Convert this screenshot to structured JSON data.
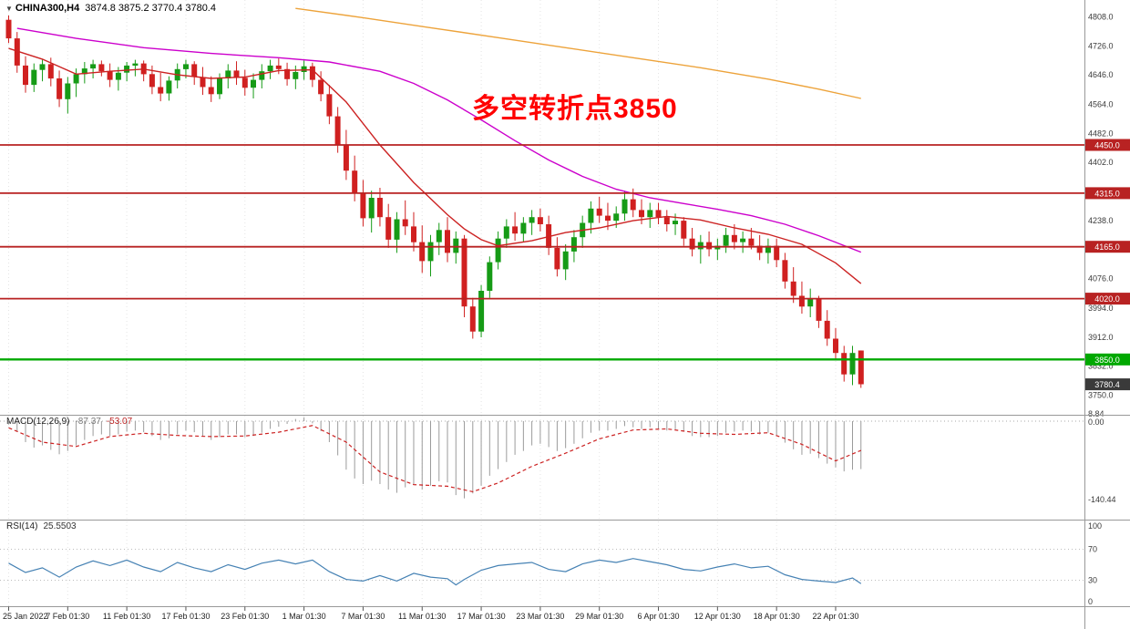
{
  "header": {
    "collapse_icon": "▼",
    "symbol": "CHINA300,H4",
    "ohlc": "3874.8 3875.2 3770.4 3780.4"
  },
  "annotation": {
    "text": "多空转折点3850",
    "color": "#ff0000"
  },
  "chart_data": {
    "type": "candlestick",
    "symbol": "CHINA300",
    "timeframe": "H4",
    "last_ohlc": {
      "open": 3874.8,
      "high": 3875.2,
      "low": 3770.4,
      "close": 3780.4
    },
    "up_color": "#169b16",
    "down_color": "#d02020",
    "x_tick_labels": [
      "25 Jan 2022",
      "7 Feb 01:30",
      "11 Feb 01:30",
      "17 Feb 01:30",
      "23 Feb 01:30",
      "1 Mar 01:30",
      "7 Mar 01:30",
      "11 Mar 01:30",
      "17 Mar 01:30",
      "23 Mar 01:30",
      "29 Mar 01:30",
      "6 Apr 01:30",
      "12 Apr 01:30",
      "18 Apr 01:30",
      "22 Apr 01:30"
    ],
    "bars_per_tick": 7,
    "y_axis_labels": [
      "4808.0",
      "4726.0",
      "4646.0",
      "4564.0",
      "4482.0",
      "4402.0",
      "4320.0",
      "4238.0",
      "4158.0",
      "4076.0",
      "3994.0",
      "3912.0",
      "3832.0",
      "3750.0"
    ],
    "candles": [
      [
        4800,
        4812,
        4735,
        4748
      ],
      [
        4748,
        4766,
        4652,
        4672
      ],
      [
        4672,
        4698,
        4596,
        4618
      ],
      [
        4618,
        4678,
        4598,
        4660
      ],
      [
        4660,
        4688,
        4628,
        4676
      ],
      [
        4676,
        4694,
        4614,
        4636
      ],
      [
        4636,
        4658,
        4556,
        4578
      ],
      [
        4578,
        4640,
        4538,
        4622
      ],
      [
        4622,
        4664,
        4584,
        4648
      ],
      [
        4648,
        4682,
        4622,
        4664
      ],
      [
        4664,
        4688,
        4636,
        4676
      ],
      [
        4676,
        4686,
        4642,
        4656
      ],
      [
        4656,
        4678,
        4612,
        4632
      ],
      [
        4632,
        4668,
        4602,
        4652
      ],
      [
        4652,
        4682,
        4628,
        4672
      ],
      [
        4672,
        4688,
        4642,
        4678
      ],
      [
        4678,
        4686,
        4628,
        4648
      ],
      [
        4648,
        4672,
        4592,
        4612
      ],
      [
        4612,
        4652,
        4572,
        4594
      ],
      [
        4594,
        4642,
        4574,
        4630
      ],
      [
        4630,
        4678,
        4608,
        4662
      ],
      [
        4662,
        4688,
        4636,
        4676
      ],
      [
        4676,
        4684,
        4618,
        4640
      ],
      [
        4640,
        4668,
        4590,
        4612
      ],
      [
        4612,
        4642,
        4570,
        4592
      ],
      [
        4592,
        4650,
        4578,
        4636
      ],
      [
        4636,
        4676,
        4608,
        4658
      ],
      [
        4658,
        4684,
        4618,
        4638
      ],
      [
        4638,
        4660,
        4588,
        4610
      ],
      [
        4610,
        4650,
        4580,
        4632
      ],
      [
        4632,
        4676,
        4608,
        4656
      ],
      [
        4656,
        4688,
        4634,
        4672
      ],
      [
        4672,
        4692,
        4648,
        4662
      ],
      [
        4662,
        4680,
        4616,
        4634
      ],
      [
        4634,
        4672,
        4606,
        4654
      ],
      [
        4654,
        4686,
        4632,
        4670
      ],
      [
        4670,
        4680,
        4612,
        4632
      ],
      [
        4632,
        4656,
        4572,
        4592
      ],
      [
        4592,
        4618,
        4508,
        4530
      ],
      [
        4530,
        4556,
        4428,
        4450
      ],
      [
        4450,
        4492,
        4352,
        4378
      ],
      [
        4378,
        4420,
        4292,
        4315
      ],
      [
        4315,
        4352,
        4222,
        4245
      ],
      [
        4245,
        4322,
        4205,
        4302
      ],
      [
        4302,
        4330,
        4222,
        4248
      ],
      [
        4248,
        4285,
        4162,
        4185
      ],
      [
        4185,
        4262,
        4148,
        4242
      ],
      [
        4242,
        4295,
        4198,
        4222
      ],
      [
        4222,
        4262,
        4152,
        4178
      ],
      [
        4178,
        4225,
        4092,
        4125
      ],
      [
        4125,
        4198,
        4082,
        4178
      ],
      [
        4178,
        4232,
        4142,
        4212
      ],
      [
        4212,
        4248,
        4122,
        4148
      ],
      [
        4148,
        4208,
        4118,
        4188
      ],
      [
        4188,
        4198,
        3968,
        3998
      ],
      [
        3998,
        4022,
        3908,
        3928
      ],
      [
        3928,
        4058,
        3912,
        4042
      ],
      [
        4042,
        4138,
        4022,
        4122
      ],
      [
        4122,
        4208,
        4102,
        4188
      ],
      [
        4188,
        4242,
        4162,
        4222
      ],
      [
        4222,
        4262,
        4182,
        4202
      ],
      [
        4202,
        4248,
        4178,
        4232
      ],
      [
        4232,
        4268,
        4198,
        4248
      ],
      [
        4248,
        4272,
        4208,
        4228
      ],
      [
        4228,
        4252,
        4142,
        4162
      ],
      [
        4162,
        4192,
        4082,
        4102
      ],
      [
        4102,
        4172,
        4072,
        4152
      ],
      [
        4152,
        4212,
        4122,
        4192
      ],
      [
        4192,
        4252,
        4162,
        4232
      ],
      [
        4232,
        4292,
        4202,
        4272
      ],
      [
        4272,
        4305,
        4232,
        4252
      ],
      [
        4252,
        4288,
        4212,
        4238
      ],
      [
        4238,
        4278,
        4218,
        4258
      ],
      [
        4258,
        4322,
        4238,
        4298
      ],
      [
        4298,
        4328,
        4248,
        4268
      ],
      [
        4268,
        4298,
        4228,
        4248
      ],
      [
        4248,
        4288,
        4218,
        4268
      ],
      [
        4268,
        4288,
        4228,
        4248
      ],
      [
        4248,
        4268,
        4208,
        4228
      ],
      [
        4228,
        4258,
        4198,
        4238
      ],
      [
        4238,
        4248,
        4168,
        4188
      ],
      [
        4188,
        4218,
        4138,
        4158
      ],
      [
        4158,
        4198,
        4118,
        4178
      ],
      [
        4178,
        4208,
        4138,
        4158
      ],
      [
        4158,
        4188,
        4128,
        4168
      ],
      [
        4168,
        4218,
        4148,
        4198
      ],
      [
        4198,
        4228,
        4158,
        4178
      ],
      [
        4178,
        4208,
        4148,
        4188
      ],
      [
        4188,
        4218,
        4158,
        4168
      ],
      [
        4168,
        4198,
        4128,
        4148
      ],
      [
        4148,
        4188,
        4118,
        4168
      ],
      [
        4168,
        4188,
        4108,
        4128
      ],
      [
        4128,
        4148,
        4048,
        4068
      ],
      [
        4068,
        4108,
        4008,
        4028
      ],
      [
        4028,
        4068,
        3978,
        3998
      ],
      [
        3998,
        4048,
        3968,
        4018
      ],
      [
        4018,
        4028,
        3938,
        3958
      ],
      [
        3958,
        3988,
        3888,
        3908
      ],
      [
        3908,
        3938,
        3848,
        3868
      ],
      [
        3868,
        3888,
        3788,
        3808
      ],
      [
        3808,
        3888,
        3778,
        3868
      ],
      [
        3874.8,
        3875.2,
        3770.4,
        3780.4
      ]
    ],
    "moving_averages": [
      {
        "name": "ma-slow-line",
        "color": "#eda33b",
        "points": [
          [
            34,
            4832
          ],
          [
            42,
            4806
          ],
          [
            50,
            4778
          ],
          [
            58,
            4750
          ],
          [
            66,
            4722
          ],
          [
            74,
            4694
          ],
          [
            82,
            4666
          ],
          [
            90,
            4634
          ],
          [
            96,
            4606
          ],
          [
            101,
            4580
          ]
        ]
      },
      {
        "name": "ma-mid-line",
        "color": "#cc00cc",
        "points": [
          [
            1,
            4776
          ],
          [
            8,
            4748
          ],
          [
            16,
            4722
          ],
          [
            24,
            4706
          ],
          [
            32,
            4694
          ],
          [
            38,
            4682
          ],
          [
            44,
            4656
          ],
          [
            48,
            4622
          ],
          [
            52,
            4576
          ],
          [
            56,
            4520
          ],
          [
            60,
            4462
          ],
          [
            64,
            4408
          ],
          [
            68,
            4362
          ],
          [
            72,
            4326
          ],
          [
            76,
            4302
          ],
          [
            80,
            4286
          ],
          [
            84,
            4270
          ],
          [
            88,
            4252
          ],
          [
            92,
            4228
          ],
          [
            96,
            4196
          ],
          [
            101,
            4150
          ]
        ]
      },
      {
        "name": "ma-fast-line",
        "color": "#cc2222",
        "points": [
          [
            0,
            4720
          ],
          [
            4,
            4690
          ],
          [
            8,
            4648
          ],
          [
            12,
            4656
          ],
          [
            16,
            4662
          ],
          [
            20,
            4646
          ],
          [
            24,
            4636
          ],
          [
            28,
            4640
          ],
          [
            32,
            4658
          ],
          [
            36,
            4660
          ],
          [
            40,
            4570
          ],
          [
            44,
            4450
          ],
          [
            48,
            4345
          ],
          [
            52,
            4255
          ],
          [
            54,
            4215
          ],
          [
            56,
            4185
          ],
          [
            58,
            4168
          ],
          [
            62,
            4182
          ],
          [
            66,
            4205
          ],
          [
            70,
            4218
          ],
          [
            74,
            4238
          ],
          [
            78,
            4250
          ],
          [
            82,
            4240
          ],
          [
            86,
            4218
          ],
          [
            90,
            4200
          ],
          [
            94,
            4172
          ],
          [
            98,
            4120
          ],
          [
            101,
            4062
          ]
        ]
      }
    ],
    "h_lines": [
      {
        "label": "4450.0",
        "price": 4450.0,
        "color": "#b82222"
      },
      {
        "label": "4315.0",
        "price": 4315.0,
        "color": "#b82222"
      },
      {
        "label": "4165.0",
        "price": 4165.0,
        "color": "#b82222"
      },
      {
        "label": "4020.0",
        "price": 4020.0,
        "color": "#b82222"
      },
      {
        "label": "3850.0",
        "price": 3850.0,
        "color": "#00a800"
      }
    ],
    "current_price": {
      "label": "3780.4",
      "price": 3780.4,
      "color": "#3a3a3a"
    },
    "macd": {
      "name": "MACD(12,26,9)",
      "main_value": "-87.37",
      "signal_value": "-53.07",
      "axis_labels": [
        "8.84",
        "0.00",
        "-140.44"
      ],
      "histogram_color": "#9b9b9b",
      "signal_color": "#cc2222",
      "histogram": [
        -6,
        -18,
        -38,
        -48,
        -44,
        -52,
        -60,
        -54,
        -44,
        -34,
        -27,
        -24,
        -27,
        -24,
        -19,
        -17,
        -20,
        -27,
        -34,
        -31,
        -24,
        -17,
        -20,
        -27,
        -34,
        -29,
        -24,
        -24,
        -29,
        -27,
        -21,
        -14,
        -10,
        -5,
        4,
        7,
        -4,
        -18,
        -38,
        -62,
        -88,
        -104,
        -114,
        -108,
        -114,
        -124,
        -130,
        -120,
        -114,
        -124,
        -117,
        -109,
        -111,
        -134,
        -140,
        -131,
        -117,
        -99,
        -87,
        -74,
        -61,
        -54,
        -44,
        -41,
        -47,
        -54,
        -49,
        -41,
        -31,
        -21,
        -17,
        -17,
        -14,
        -9,
        -11,
        -14,
        -11,
        -14,
        -17,
        -15,
        -19,
        -27,
        -29,
        -29,
        -27,
        -21,
        -19,
        -17,
        -19,
        -24,
        -21,
        -27,
        -39,
        -51,
        -61,
        -59,
        -67,
        -77,
        -84,
        -91,
        -88,
        -87
      ],
      "signal_points": [
        [
          0,
          -12
        ],
        [
          4,
          -38
        ],
        [
          8,
          -46
        ],
        [
          12,
          -28
        ],
        [
          16,
          -22
        ],
        [
          20,
          -26
        ],
        [
          24,
          -28
        ],
        [
          28,
          -27
        ],
        [
          32,
          -20
        ],
        [
          36,
          -8
        ],
        [
          40,
          -38
        ],
        [
          44,
          -92
        ],
        [
          48,
          -115
        ],
        [
          52,
          -118
        ],
        [
          55,
          -128
        ],
        [
          58,
          -112
        ],
        [
          62,
          -82
        ],
        [
          66,
          -58
        ],
        [
          70,
          -32
        ],
        [
          74,
          -16
        ],
        [
          78,
          -14
        ],
        [
          82,
          -22
        ],
        [
          86,
          -24
        ],
        [
          90,
          -21
        ],
        [
          94,
          -42
        ],
        [
          98,
          -72
        ],
        [
          101,
          -53
        ]
      ]
    },
    "rsi": {
      "name": "RSI(14)",
      "value": "25.5503",
      "axis_labels": [
        "100",
        "70",
        "30",
        "0"
      ],
      "levels": [
        70,
        30
      ],
      "line_color": "#4682b4",
      "points": [
        [
          0,
          52
        ],
        [
          2,
          40
        ],
        [
          4,
          46
        ],
        [
          6,
          34
        ],
        [
          8,
          47
        ],
        [
          10,
          55
        ],
        [
          12,
          49
        ],
        [
          14,
          56
        ],
        [
          16,
          47
        ],
        [
          18,
          41
        ],
        [
          20,
          53
        ],
        [
          22,
          46
        ],
        [
          24,
          41
        ],
        [
          26,
          50
        ],
        [
          28,
          44
        ],
        [
          30,
          52
        ],
        [
          32,
          56
        ],
        [
          34,
          51
        ],
        [
          36,
          56
        ],
        [
          38,
          41
        ],
        [
          40,
          31
        ],
        [
          42,
          29
        ],
        [
          44,
          36
        ],
        [
          46,
          29
        ],
        [
          48,
          39
        ],
        [
          50,
          34
        ],
        [
          52,
          32
        ],
        [
          53,
          24
        ],
        [
          54,
          31
        ],
        [
          56,
          43
        ],
        [
          58,
          49
        ],
        [
          60,
          51
        ],
        [
          62,
          53
        ],
        [
          64,
          44
        ],
        [
          66,
          41
        ],
        [
          68,
          51
        ],
        [
          70,
          56
        ],
        [
          72,
          53
        ],
        [
          74,
          58
        ],
        [
          76,
          54
        ],
        [
          78,
          50
        ],
        [
          80,
          44
        ],
        [
          82,
          42
        ],
        [
          84,
          47
        ],
        [
          86,
          51
        ],
        [
          88,
          46
        ],
        [
          90,
          48
        ],
        [
          92,
          37
        ],
        [
          94,
          31
        ],
        [
          96,
          29
        ],
        [
          98,
          27
        ],
        [
          100,
          33
        ],
        [
          101,
          25.55
        ]
      ]
    }
  }
}
